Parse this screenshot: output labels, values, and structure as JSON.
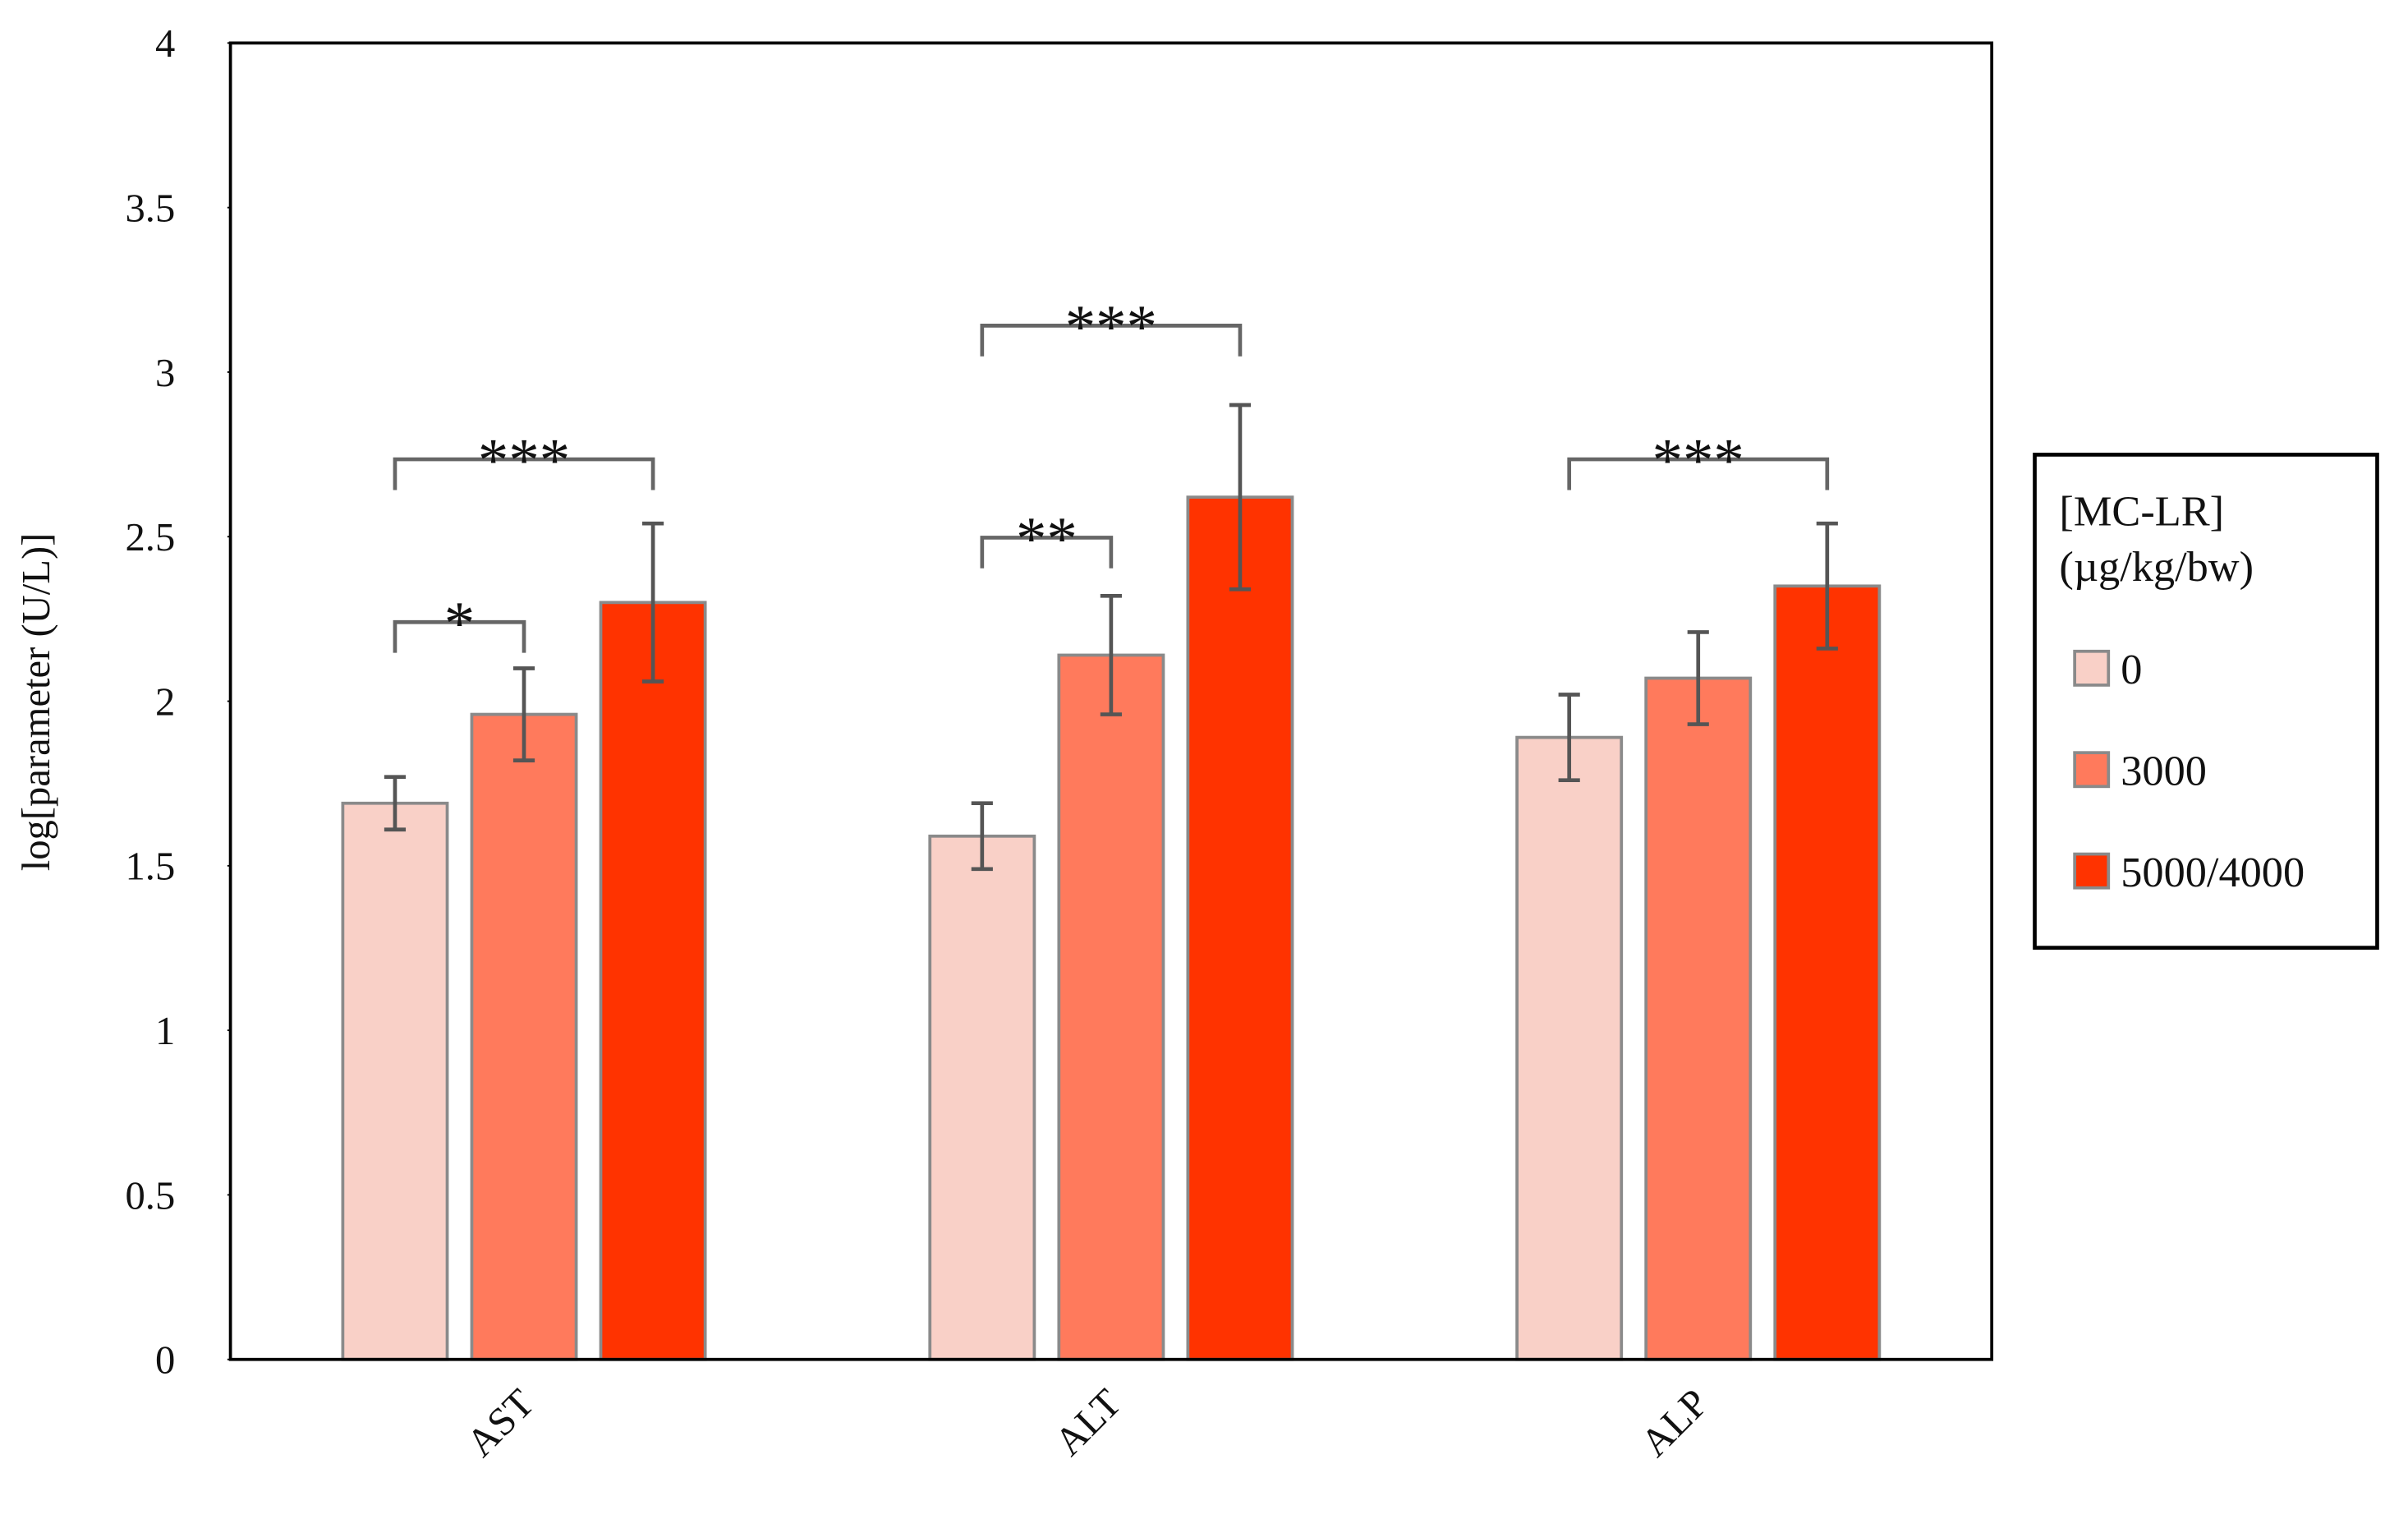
{
  "chart_data": {
    "type": "bar",
    "y_label": "log[parameter (U/L)]",
    "categories": [
      "AST",
      "ALT",
      "ALP"
    ],
    "legend_title": [
      "[MC-LR]",
      "(µg/kg/bw)"
    ],
    "legend_position": "right",
    "series": [
      {
        "name": "0",
        "color": "#f9d0c7",
        "values": [
          1.69,
          1.59,
          1.89
        ],
        "errors": [
          0.08,
          0.1,
          0.13
        ]
      },
      {
        "name": "3000",
        "color": "#ff7a5c",
        "values": [
          1.96,
          2.14,
          2.07
        ],
        "errors": [
          0.14,
          0.18,
          0.14
        ]
      },
      {
        "name": "5000/4000",
        "color": "#ff3300",
        "values": [
          2.3,
          2.62,
          2.35
        ],
        "errors": [
          0.24,
          0.28,
          0.19
        ]
      }
    ],
    "annotations": [
      "*",
      "***",
      "**",
      "***",
      "***"
    ],
    "ylim": [
      0,
      4
    ],
    "yticks": [
      0,
      0.5,
      1,
      1.5,
      2,
      2.5,
      3,
      3.5,
      4
    ]
  }
}
